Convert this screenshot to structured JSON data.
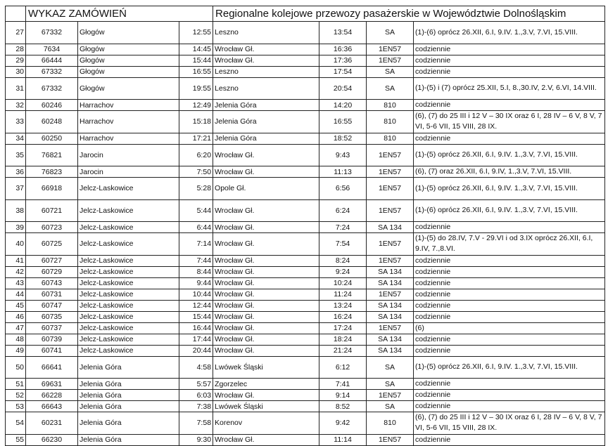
{
  "header": {
    "title_left": "WYKAZ ZAMÓWIEŃ",
    "title_right": "Regionalne kolejowe przewozy pasażerskie w Województwie Dolnośląskim"
  },
  "rows": [
    [
      "27",
      "67332",
      "Głogów",
      "12:55",
      "Leszno",
      "13:54",
      "SA",
      "(1)-(6) oprócz 26.XII, 6.I, 9.IV. 1.,3.V, 7.VI, 15.VIII."
    ],
    [
      "28",
      "7634",
      "Głogów",
      "14:45",
      "Wrocław Gł.",
      "16:36",
      "1EN57",
      "codziennie"
    ],
    [
      "29",
      "66444",
      "Głogów",
      "15:44",
      "Wrocław Gł.",
      "17:36",
      "1EN57",
      "codziennie"
    ],
    [
      "30",
      "67332",
      "Głogów",
      "16:55",
      "Leszno",
      "17:54",
      "SA",
      "codziennie"
    ],
    [
      "31",
      "67332",
      "Głogów",
      "19:55",
      "Leszno",
      "20:54",
      "SA",
      "(1)-(5) i (7) oprócz 25.XII, 5.I, 8.,30.IV, 2.V, 6.VI, 14.VIII."
    ],
    [
      "32",
      "60246",
      "Harrachov",
      "12:49",
      "Jelenia Góra",
      "14:20",
      "810",
      "codziennie"
    ],
    [
      "33",
      "60248",
      "Harrachov",
      "15:18",
      "Jelenia Góra",
      "16:55",
      "810",
      "(6), (7) do 25 III i 12 V – 30 IX oraz 6 I, 28 IV – 6 V, 8 V, 7 VI, 5-6 VII, 15 VIII, 28 IX."
    ],
    [
      "34",
      "60250",
      "Harrachov",
      "17:21",
      "Jelenia Góra",
      "18:52",
      "810",
      "codziennie"
    ],
    [
      "35",
      "76821",
      "Jarocin",
      "6:20",
      "Wrocław Gł.",
      "9:43",
      "1EN57",
      "(1)-(5) oprócz 26.XII, 6.I, 9.IV. 1.,3.V, 7.VI, 15.VIII."
    ],
    [
      "36",
      "76823",
      "Jarocin",
      "7:50",
      "Wrocław Gł.",
      "11:13",
      "1EN57",
      "(6), (7) oraz 26.XII, 6.I, 9.IV, 1.,3.V, 7.VI, 15.VIII."
    ],
    [
      "37",
      "66918",
      "Jelcz-Laskowice",
      "5:28",
      "Opole Gł.",
      "6:56",
      "1EN57",
      "(1)-(5) oprócz 26.XII, 6.I, 9.IV. 1.,3.V, 7.VI, 15.VIII."
    ],
    [
      "38",
      "60721",
      "Jelcz-Laskowice",
      "5:44",
      "Wrocław Gł.",
      "6:24",
      "1EN57",
      "(1)-(6) oprócz 26.XII, 6.I, 9.IV. 1.,3.V, 7.VI, 15.VIII."
    ],
    [
      "39",
      "60723",
      "Jelcz-Laskowice",
      "6:44",
      "Wrocław Gł.",
      "7:24",
      "SA 134",
      "codziennie"
    ],
    [
      "40",
      "60725",
      "Jelcz-Laskowice",
      "7:14",
      "Wrocław Gł.",
      "7:54",
      "1EN57",
      "(1)-(5) do 28.IV, 7.V - 29.VI i od 3.IX oprócz 26.XII, 6.I, 9.IV, 7.,8.VI."
    ],
    [
      "41",
      "60727",
      "Jelcz-Laskowice",
      "7:44",
      "Wrocław Gł.",
      "8:24",
      "1EN57",
      "codziennie"
    ],
    [
      "42",
      "60729",
      "Jelcz-Laskowice",
      "8:44",
      "Wrocław Gł.",
      "9:24",
      "SA 134",
      "codziennie"
    ],
    [
      "43",
      "60743",
      "Jelcz-Laskowice",
      "9:44",
      "Wrocław Gł.",
      "10:24",
      "SA 134",
      "codziennie"
    ],
    [
      "44",
      "60731",
      "Jelcz-Laskowice",
      "10:44",
      "Wrocław Gł.",
      "11:24",
      "1EN57",
      "codziennie"
    ],
    [
      "45",
      "60747",
      "Jelcz-Laskowice",
      "12:44",
      "Wrocław Gł.",
      "13:24",
      "SA 134",
      "codziennie"
    ],
    [
      "46",
      "60735",
      "Jelcz-Laskowice",
      "15:44",
      "Wrocław Gł.",
      "16:24",
      "SA 134",
      "codziennie"
    ],
    [
      "47",
      "60737",
      "Jelcz-Laskowice",
      "16:44",
      "Wrocław Gł.",
      "17:24",
      "1EN57",
      "(6)"
    ],
    [
      "48",
      "60739",
      "Jelcz-Laskowice",
      "17:44",
      "Wrocław Gł.",
      "18:24",
      "SA 134",
      "codziennie"
    ],
    [
      "49",
      "60741",
      "Jelcz-Laskowice",
      "20:44",
      "Wrocław Gł.",
      "21:24",
      "SA 134",
      "codziennie"
    ],
    [
      "50",
      "66641",
      "Jelenia Góra",
      "4:58",
      "Lwówek Śląski",
      "6:12",
      "SA",
      "(1)-(5) oprócz 26.XII, 6.I, 9.IV. 1.,3.V, 7.VI, 15.VIII."
    ],
    [
      "51",
      "69631",
      "Jelenia Góra",
      "5:57",
      "Zgorzelec",
      "7:41",
      "SA",
      "codziennie"
    ],
    [
      "52",
      "66228",
      "Jelenia Góra",
      "6:03",
      "Wrocław Gł.",
      "9:14",
      "1EN57",
      "codziennie"
    ],
    [
      "53",
      "66643",
      "Jelenia Góra",
      "7:38",
      "Lwówek Śląski",
      "8:52",
      "SA",
      "codziennie"
    ],
    [
      "54",
      "60231",
      "Jelenia Góra",
      "7:58",
      "Korenov",
      "9:42",
      "810",
      "(6), (7) do 25 III i 12 V – 30 IX oraz 6 I, 28 IV – 6 V, 8 V, 7 VI, 5-6 VII, 15 VIII, 28 IX."
    ],
    [
      "55",
      "66230",
      "Jelenia Góra",
      "9:30",
      "Wrocław Gł.",
      "11:14",
      "1EN57",
      "codziennie"
    ]
  ]
}
